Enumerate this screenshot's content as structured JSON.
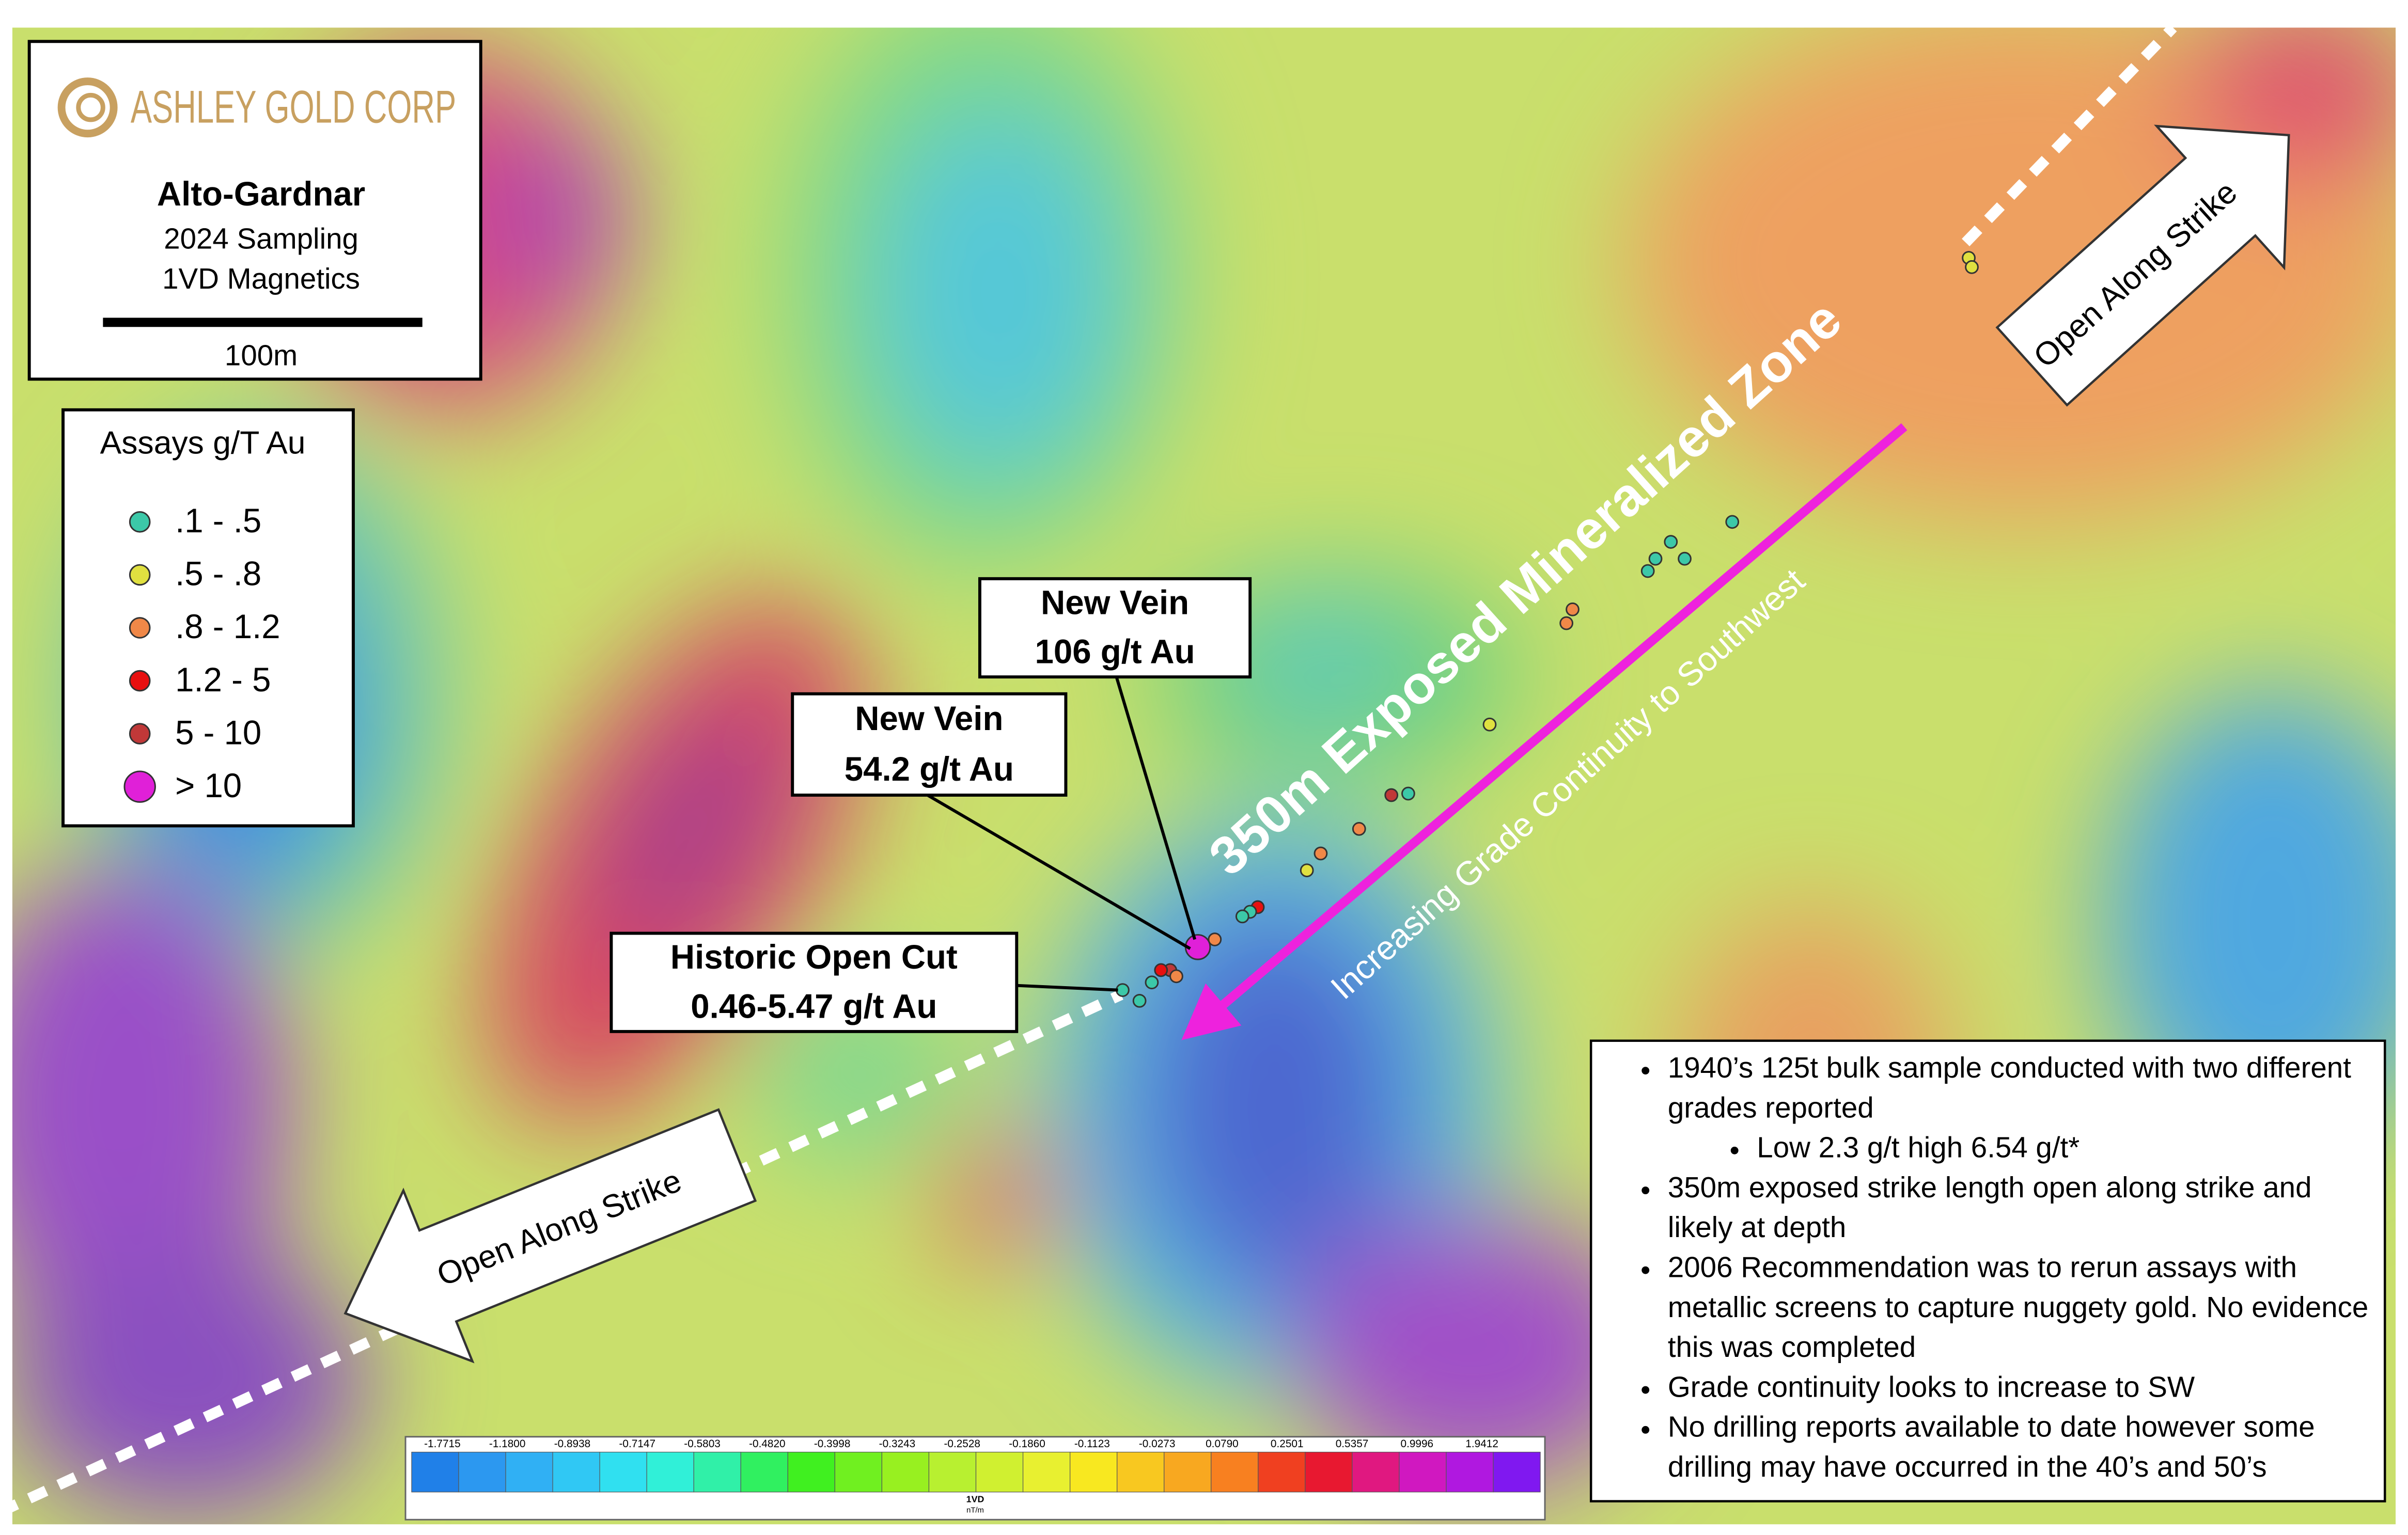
{
  "header": {
    "logo": "ASHLEY GOLD CORP",
    "title": "Alto-Gardnar",
    "subtitle_lines": [
      "2024 Sampling",
      "1VD Magnetics"
    ],
    "scale_label": "100m"
  },
  "legend": {
    "title": "Assays g/T Au",
    "items": [
      {
        "label": ".1 - .5",
        "color": "#3cc8a8"
      },
      {
        "label": ".5 - .8",
        "color": "#e0e040"
      },
      {
        "label": ".8 - 1.2",
        "color": "#f08848"
      },
      {
        "label": "1.2 - 5",
        "color": "#e81010"
      },
      {
        "label": "5 - 10",
        "color": "#c03838"
      },
      {
        "label": "> 10",
        "color": "#e020d8"
      }
    ]
  },
  "callouts": [
    {
      "title": "New Vein",
      "value": "106 g/t Au"
    },
    {
      "title": "New Vein",
      "value": "54.2 g/t Au"
    },
    {
      "title": "Historic Open Cut",
      "value": "0.46-5.47 g/t Au"
    }
  ],
  "zone_label": "350m Exposed Mineralized Zone",
  "trend_label": "Increasing Grade Continuity to Southwest",
  "strike_labels": [
    "Open Along Strike",
    "Open Along Strike"
  ],
  "notes": [
    {
      "text": "1940’s 125t bulk sample conducted with two different grades reported",
      "sub": [
        "Low 2.3 g/t high 6.54 g/t*"
      ]
    },
    {
      "text": "350m exposed strike length open along strike and likely at depth"
    },
    {
      "text": "2006 Recommendation was to rerun assays with metallic screens to capture nuggety gold.  No evidence this was completed"
    },
    {
      "text": "Grade continuity looks to increase to SW"
    },
    {
      "text": "No drilling reports available to date however some drilling may have occurred in the 40’s and 50’s"
    }
  ],
  "colorbar": {
    "title": "1VD",
    "unit": "nT/m",
    "ticks": [
      "-1.7715",
      "-1.1800",
      "-0.8938",
      "-0.7147",
      "-0.5803",
      "-0.4820",
      "-0.3998",
      "-0.3243",
      "-0.2528",
      "-0.1860",
      "-0.1123",
      "-0.0273",
      "0.0790",
      "0.2501",
      "0.5357",
      "0.9996",
      "1.9412"
    ]
  }
}
